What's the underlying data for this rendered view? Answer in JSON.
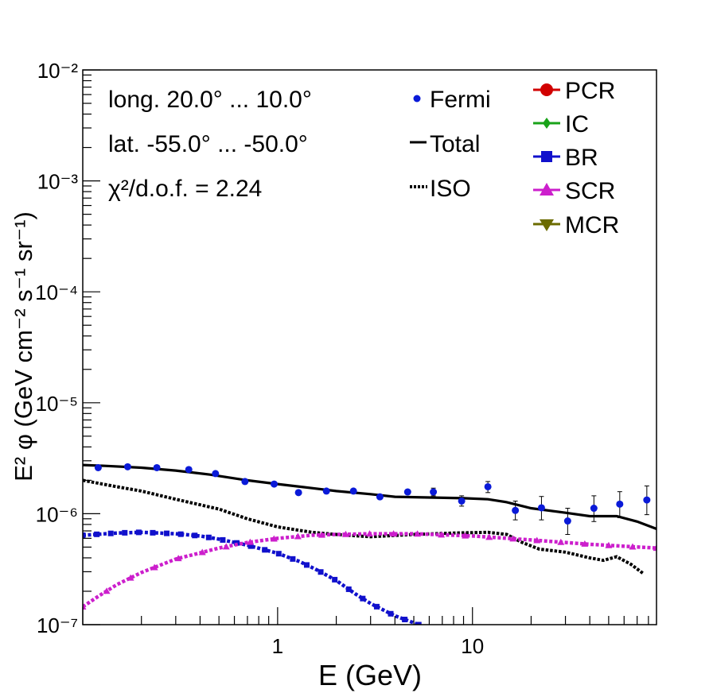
{
  "chart_data": {
    "type": "line",
    "title": "",
    "xlabel": "E (GeV)",
    "ylabel": "E² φ (GeV cm⁻² s⁻¹ sr⁻¹)",
    "xscale": "log",
    "yscale": "log",
    "xlim": [
      0.1,
      88
    ],
    "ylim": [
      1e-07,
      0.01
    ],
    "x_ticks": [
      {
        "value": 1,
        "label": "1"
      },
      {
        "value": 10,
        "label": "10"
      }
    ],
    "y_ticks": [
      {
        "value": 1e-07,
        "label": "10⁻⁷"
      },
      {
        "value": 1e-06,
        "label": "10⁻⁶"
      },
      {
        "value": 1e-05,
        "label": "10⁻⁵"
      },
      {
        "value": 0.0001,
        "label": "10⁻⁴"
      },
      {
        "value": 0.001,
        "label": "10⁻³"
      },
      {
        "value": 0.01,
        "label": "10⁻²"
      }
    ],
    "annotations": [
      "long. 20.0° ... 10.0°",
      "lat. -55.0° ... -50.0°",
      "χ²/d.o.f. = 2.24"
    ],
    "legend_left": [
      {
        "name": "Fermi",
        "style": "points",
        "color": "#0a1ad8"
      },
      {
        "name": "Total",
        "style": "solid",
        "color": "#000000"
      },
      {
        "name": "ISO",
        "style": "dotted",
        "color": "#000000"
      }
    ],
    "legend_right": [
      {
        "name": "PCR",
        "marker": "circle",
        "color": "#d10000"
      },
      {
        "name": "IC",
        "marker": "diamond",
        "color": "#19a319"
      },
      {
        "name": "BR",
        "marker": "square",
        "color": "#1010cc"
      },
      {
        "name": "SCR",
        "marker": "triangle-up",
        "color": "#cc1fcc"
      },
      {
        "name": "MCR",
        "marker": "triangle-down",
        "color": "#6b6b00"
      }
    ],
    "fermi": {
      "x": [
        0.12,
        0.17,
        0.24,
        0.35,
        0.48,
        0.68,
        0.96,
        1.28,
        1.78,
        2.45,
        3.35,
        4.65,
        6.3,
        8.8,
        12.0,
        16.6,
        22.6,
        30.8,
        42.0,
        57.0,
        78.5
      ],
      "y": [
        2.6e-06,
        2.65e-06,
        2.6e-06,
        2.5e-06,
        2.3e-06,
        1.95e-06,
        1.85e-06,
        1.55e-06,
        1.6e-06,
        1.6e-06,
        1.42e-06,
        1.57e-06,
        1.57e-06,
        1.3e-06,
        1.75e-06,
        1.07e-06,
        1.13e-06,
        8.6e-07,
        1.12e-06,
        1.22e-06,
        1.33e-06
      ],
      "y_low": [
        2.55e-06,
        2.6e-06,
        2.55e-06,
        2.45e-06,
        2.25e-06,
        1.9e-06,
        1.8e-06,
        1.5e-06,
        1.55e-06,
        1.55e-06,
        1.38e-06,
        1.5e-06,
        1.45e-06,
        1.17e-06,
        1.55e-06,
        8.8e-07,
        8.8e-07,
        6.5e-07,
        8.5e-07,
        9.2e-07,
        9.8e-07
      ],
      "y_high": [
        2.65e-06,
        2.7e-06,
        2.65e-06,
        2.55e-06,
        2.35e-06,
        2e-06,
        1.9e-06,
        1.6e-06,
        1.65e-06,
        1.65e-06,
        1.47e-06,
        1.65e-06,
        1.7e-06,
        1.45e-06,
        1.95e-06,
        1.3e-06,
        1.43e-06,
        1.12e-06,
        1.45e-06,
        1.58e-06,
        1.78e-06
      ]
    },
    "series": [
      {
        "name": "Total",
        "color": "#000000",
        "style": "solid",
        "x": [
          0.1,
          0.13,
          0.2,
          0.3,
          0.45,
          0.7,
          1.0,
          1.5,
          2.0,
          3.0,
          4.0,
          6.0,
          9.0,
          12.0,
          15.0,
          20.0,
          30.0,
          40.0,
          55.0,
          70.0,
          88.0
        ],
        "y": [
          2.75e-06,
          2.7e-06,
          2.6e-06,
          2.45e-06,
          2.25e-06,
          2e-06,
          1.85e-06,
          1.7e-06,
          1.6e-06,
          1.5e-06,
          1.42e-06,
          1.4e-06,
          1.38e-06,
          1.35e-06,
          1.27e-06,
          1.12e-06,
          1.02e-06,
          9.5e-07,
          9.5e-07,
          8.5e-07,
          7.3e-07
        ]
      },
      {
        "name": "ISO",
        "color": "#000000",
        "style": "dotted",
        "x": [
          0.1,
          0.15,
          0.2,
          0.3,
          0.5,
          0.7,
          1.0,
          1.5,
          2.0,
          3.0,
          5.0,
          8.0,
          12.0,
          15.0,
          18.0,
          22.0,
          30.0,
          40.0,
          47.0,
          55.0,
          65.0,
          75.0
        ],
        "y": [
          2e-06,
          1.75e-06,
          1.6e-06,
          1.35e-06,
          1.1e-06,
          9e-07,
          7.6e-07,
          6.8e-07,
          6.5e-07,
          6.2e-07,
          6.5e-07,
          6.7e-07,
          6.8e-07,
          6.5e-07,
          5.5e-07,
          4.8e-07,
          4.5e-07,
          4e-07,
          3.8e-07,
          4.1e-07,
          3.5e-07,
          2.9e-07
        ]
      },
      {
        "name": "BR",
        "color": "#1010cc",
        "style": "dashed-marker",
        "marker": "square",
        "x": [
          0.1,
          0.15,
          0.2,
          0.3,
          0.4,
          0.5,
          0.7,
          1.0,
          1.3,
          1.6,
          2.0,
          2.5,
          3.0,
          4.0,
          5.3
        ],
        "y": [
          6.4e-07,
          6.7e-07,
          6.8e-07,
          6.6e-07,
          6.3e-07,
          5.9e-07,
          5.2e-07,
          4.4e-07,
          3.7e-07,
          3.1e-07,
          2.5e-07,
          1.9e-07,
          1.55e-07,
          1.2e-07,
          1e-07
        ]
      },
      {
        "name": "SCR",
        "color": "#cc1fcc",
        "style": "dashed-marker",
        "marker": "triangle-up",
        "x": [
          0.1,
          0.12,
          0.15,
          0.2,
          0.3,
          0.5,
          0.7,
          1.0,
          1.5,
          2.0,
          3.0,
          5.0,
          10.0,
          20.0,
          40.0,
          88.0
        ],
        "y": [
          1.45e-07,
          1.8e-07,
          2.3e-07,
          2.95e-07,
          3.9e-07,
          4.9e-07,
          5.5e-07,
          6e-07,
          6.4e-07,
          6.5e-07,
          6.6e-07,
          6.6e-07,
          6.3e-07,
          5.8e-07,
          5.3e-07,
          4.9e-07
        ]
      }
    ]
  }
}
